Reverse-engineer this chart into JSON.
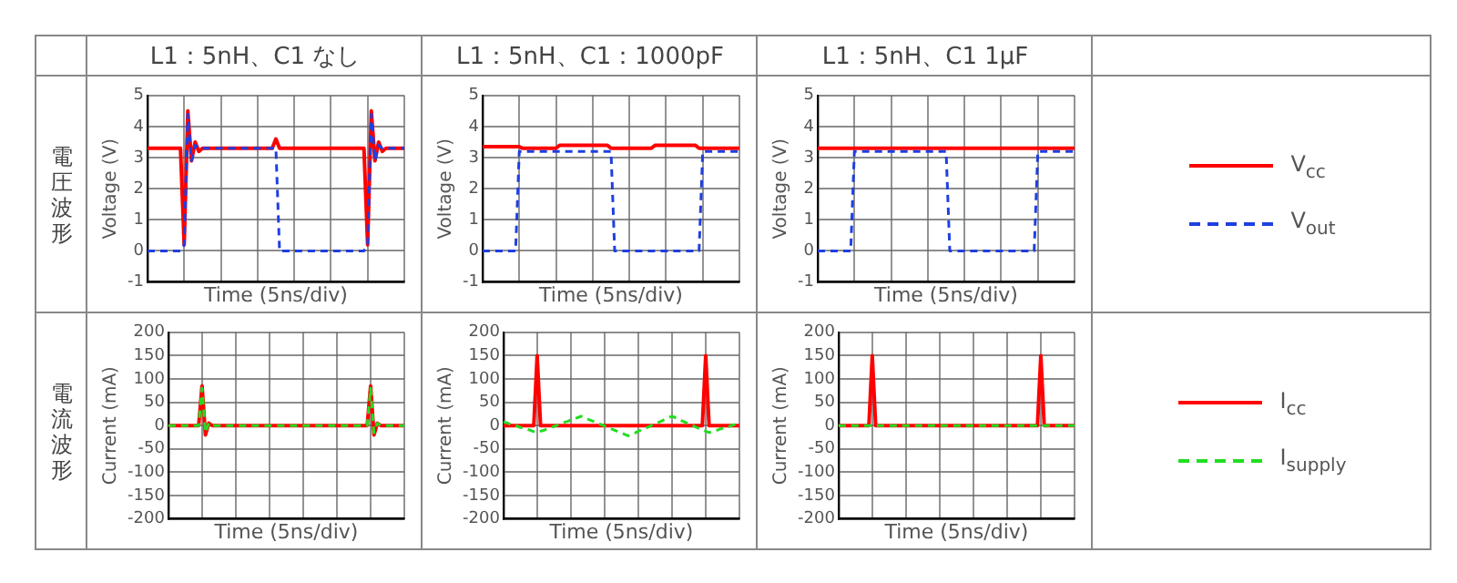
{
  "chart_data": [
    {
      "type": "line",
      "title": "L1：5nH、C1 なし",
      "subtitle": "電圧波形",
      "xlabel": "Time (5ns/div)",
      "ylabel": "Voltage (V)",
      "categories": [
        null,
        null,
        null,
        null,
        null,
        null,
        null,
        null,
        null,
        null,
        null,
        null,
        null,
        null,
        null,
        null,
        null,
        null,
        null,
        null,
        null,
        null,
        null,
        null,
        null,
        null,
        null,
        null,
        null,
        null,
        null,
        null,
        null,
        null,
        null,
        null,
        null,
        null,
        null,
        null,
        null,
        null,
        null,
        null,
        null,
        null,
        null,
        null,
        null,
        null,
        null,
        null,
        null,
        null,
        null,
        null,
        null,
        null,
        null,
        null,
        null,
        null,
        null,
        null,
        null,
        null,
        null,
        null,
        null,
        null,
        null
      ],
      "ylim": [
        -1,
        5
      ],
      "yticks": [
        -1,
        0,
        1,
        2,
        3,
        4,
        5
      ],
      "tick_labels": "y",
      "grid": true,
      "marker": "none",
      "series": [
        {
          "color": "#ff0000",
          "line_style": "solid",
          "values": [
            3.3,
            3.3,
            3.3,
            3.3,
            3.3,
            3.3,
            3.3,
            3.3,
            3.3,
            3.3,
            0.2,
            4.5,
            2.9,
            3.5,
            3.2,
            3.3,
            3.3,
            3.3,
            3.3,
            3.3,
            3.3,
            3.3,
            3.3,
            3.3,
            3.3,
            3.3,
            3.3,
            3.3,
            3.3,
            3.3,
            3.3,
            3.3,
            3.3,
            3.3,
            3.3,
            3.6,
            3.3,
            3.3,
            3.3,
            3.3,
            3.3,
            3.3,
            3.3,
            3.3,
            3.3,
            3.3,
            3.3,
            3.3,
            3.3,
            3.3,
            3.3,
            3.3,
            3.3,
            3.3,
            3.3,
            3.3,
            3.3,
            3.3,
            3.3,
            3.3,
            0.2,
            4.5,
            2.9,
            3.5,
            3.2,
            3.3,
            3.3,
            3.3,
            3.3,
            3.3,
            3.3
          ]
        },
        {
          "color": "#1f3fe0",
          "line_style": "dashed",
          "values": [
            0,
            0,
            0,
            0,
            0,
            0,
            0,
            0,
            0,
            0,
            0.2,
            4.4,
            2.9,
            3.4,
            3.3,
            3.3,
            3.3,
            3.3,
            3.3,
            3.3,
            3.3,
            3.3,
            3.3,
            3.3,
            3.3,
            3.3,
            3.3,
            3.3,
            3.3,
            3.3,
            3.3,
            3.3,
            3.3,
            3.3,
            3.3,
            3.3,
            0,
            0,
            0,
            0,
            0,
            0,
            0,
            0,
            0,
            0,
            0,
            0,
            0,
            0,
            0,
            0,
            0,
            0,
            0,
            0,
            0,
            0,
            0,
            0,
            0.2,
            4.4,
            2.9,
            3.4,
            3.3,
            3.3,
            3.3,
            3.3,
            3.3,
            3.3,
            3.3
          ]
        }
      ]
    },
    {
      "type": "line",
      "title": "L1：5nH、C1：1000pF",
      "xlabel": "Time (5ns/div)",
      "ylabel": "Voltage (V)",
      "categories": [
        null,
        null,
        null,
        null,
        null,
        null,
        null,
        null,
        null,
        null,
        null,
        null,
        null,
        null,
        null,
        null,
        null,
        null,
        null,
        null,
        null,
        null,
        null,
        null,
        null,
        null,
        null,
        null,
        null,
        null,
        null,
        null,
        null,
        null,
        null,
        null,
        null,
        null,
        null,
        null,
        null,
        null,
        null,
        null,
        null,
        null,
        null,
        null,
        null,
        null,
        null,
        null,
        null,
        null,
        null,
        null,
        null,
        null,
        null,
        null,
        null,
        null,
        null,
        null,
        null,
        null,
        null,
        null,
        null,
        null,
        null
      ],
      "ylim": [
        -1,
        5
      ],
      "yticks": [
        -1,
        0,
        1,
        2,
        3,
        4,
        5
      ],
      "tick_labels": "y",
      "grid": true,
      "marker": "none",
      "series": [
        {
          "color": "#ff0000",
          "line_style": "solid",
          "values": [
            3.35,
            3.35,
            3.35,
            3.35,
            3.35,
            3.35,
            3.35,
            3.35,
            3.35,
            3.35,
            3.35,
            3.3,
            3.3,
            3.3,
            3.3,
            3.3,
            3.3,
            3.3,
            3.3,
            3.3,
            3.3,
            3.4,
            3.4,
            3.4,
            3.4,
            3.4,
            3.4,
            3.4,
            3.4,
            3.4,
            3.4,
            3.4,
            3.4,
            3.4,
            3.4,
            3.3,
            3.3,
            3.3,
            3.3,
            3.3,
            3.3,
            3.3,
            3.3,
            3.3,
            3.3,
            3.3,
            3.3,
            3.4,
            3.4,
            3.4,
            3.4,
            3.4,
            3.4,
            3.4,
            3.4,
            3.4,
            3.4,
            3.4,
            3.4,
            3.3,
            3.3,
            3.3,
            3.3,
            3.3,
            3.3,
            3.3,
            3.3,
            3.3,
            3.3,
            3.3,
            3.3
          ]
        },
        {
          "color": "#1f3fe0",
          "line_style": "dashed",
          "values": [
            0,
            0,
            0,
            0,
            0,
            0,
            0,
            0,
            0,
            0,
            3.2,
            3.2,
            3.2,
            3.2,
            3.2,
            3.2,
            3.2,
            3.2,
            3.2,
            3.2,
            3.2,
            3.2,
            3.2,
            3.2,
            3.2,
            3.2,
            3.2,
            3.2,
            3.2,
            3.2,
            3.2,
            3.2,
            3.2,
            3.2,
            3.2,
            3.2,
            0,
            0,
            0,
            0,
            0,
            0,
            0,
            0,
            0,
            0,
            0,
            0,
            0,
            0,
            0,
            0,
            0,
            0,
            0,
            0,
            0,
            0,
            0,
            0,
            3.2,
            3.2,
            3.2,
            3.2,
            3.2,
            3.2,
            3.2,
            3.2,
            3.2,
            3.2,
            3.2
          ]
        }
      ]
    },
    {
      "type": "line",
      "title": "L1：5nH、C1 1μF",
      "xlabel": "Time (5ns/div)",
      "ylabel": "Voltage (V)",
      "categories": [
        null,
        null,
        null,
        null,
        null,
        null,
        null,
        null,
        null,
        null,
        null,
        null,
        null,
        null,
        null,
        null,
        null,
        null,
        null,
        null,
        null,
        null,
        null,
        null,
        null,
        null,
        null,
        null,
        null,
        null,
        null,
        null,
        null,
        null,
        null,
        null,
        null,
        null,
        null,
        null,
        null,
        null,
        null,
        null,
        null,
        null,
        null,
        null,
        null,
        null,
        null,
        null,
        null,
        null,
        null,
        null,
        null,
        null,
        null,
        null,
        null,
        null,
        null,
        null,
        null,
        null,
        null,
        null,
        null,
        null,
        null
      ],
      "ylim": [
        -1,
        5
      ],
      "yticks": [
        -1,
        0,
        1,
        2,
        3,
        4,
        5
      ],
      "tick_labels": "y",
      "grid": true,
      "marker": "none",
      "legend": "right",
      "series": [
        {
          "name": "V$_{cc}$",
          "color": "#ff0000",
          "line_style": "solid",
          "values": [
            3.3,
            3.3,
            3.3,
            3.3,
            3.3,
            3.3,
            3.3,
            3.3,
            3.3,
            3.3,
            3.3,
            3.3,
            3.3,
            3.3,
            3.3,
            3.3,
            3.3,
            3.3,
            3.3,
            3.3,
            3.3,
            3.3,
            3.3,
            3.3,
            3.3,
            3.3,
            3.3,
            3.3,
            3.3,
            3.3,
            3.3,
            3.3,
            3.3,
            3.3,
            3.3,
            3.3,
            3.3,
            3.3,
            3.3,
            3.3,
            3.3,
            3.3,
            3.3,
            3.3,
            3.3,
            3.3,
            3.3,
            3.3,
            3.3,
            3.3,
            3.3,
            3.3,
            3.3,
            3.3,
            3.3,
            3.3,
            3.3,
            3.3,
            3.3,
            3.3,
            3.3,
            3.3,
            3.3,
            3.3,
            3.3,
            3.3,
            3.3,
            3.3,
            3.3,
            3.3,
            3.3
          ]
        },
        {
          "name": "V$_{out}$",
          "color": "#1f3fe0",
          "line_style": "dashed",
          "values": [
            0,
            0,
            0,
            0,
            0,
            0,
            0,
            0,
            0,
            0,
            3.2,
            3.2,
            3.2,
            3.2,
            3.2,
            3.2,
            3.2,
            3.2,
            3.2,
            3.2,
            3.2,
            3.2,
            3.2,
            3.2,
            3.2,
            3.2,
            3.2,
            3.2,
            3.2,
            3.2,
            3.2,
            3.2,
            3.2,
            3.2,
            3.2,
            3.2,
            0,
            0,
            0,
            0,
            0,
            0,
            0,
            0,
            0,
            0,
            0,
            0,
            0,
            0,
            0,
            0,
            0,
            0,
            0,
            0,
            0,
            0,
            0,
            0,
            3.2,
            3.2,
            3.2,
            3.2,
            3.2,
            3.2,
            3.2,
            3.2,
            3.2,
            3.2,
            3.2
          ]
        }
      ]
    },
    {
      "type": "line",
      "subtitle": "電流波形",
      "xlabel": "Time (5ns/div)",
      "ylabel": "Current (mA)",
      "categories": [
        null,
        null,
        null,
        null,
        null,
        null,
        null,
        null,
        null,
        null,
        null,
        null,
        null,
        null,
        null,
        null,
        null,
        null,
        null,
        null,
        null,
        null,
        null,
        null,
        null,
        null,
        null,
        null,
        null,
        null,
        null,
        null,
        null,
        null,
        null,
        null,
        null,
        null,
        null,
        null,
        null,
        null,
        null,
        null,
        null,
        null,
        null,
        null,
        null,
        null,
        null,
        null,
        null,
        null,
        null,
        null,
        null,
        null,
        null,
        null,
        null,
        null,
        null,
        null,
        null,
        null,
        null,
        null,
        null,
        null,
        null
      ],
      "ylim": [
        -200,
        200
      ],
      "yticks": [
        -200,
        -150,
        -100,
        -50,
        0,
        50,
        100,
        150,
        200
      ],
      "tick_labels": "y",
      "grid": true,
      "marker": "none",
      "series": [
        {
          "color": "#ff0000",
          "line_style": "solid",
          "values": [
            0,
            0,
            0,
            0,
            0,
            0,
            0,
            0,
            0,
            0,
            85,
            -20,
            5,
            0,
            0,
            0,
            0,
            0,
            0,
            0,
            0,
            0,
            0,
            0,
            0,
            0,
            0,
            0,
            0,
            0,
            0,
            0,
            0,
            0,
            0,
            0,
            0,
            0,
            0,
            0,
            0,
            0,
            0,
            0,
            0,
            0,
            0,
            0,
            0,
            0,
            0,
            0,
            0,
            0,
            0,
            0,
            0,
            0,
            0,
            0,
            85,
            -20,
            5,
            0,
            0,
            0,
            0,
            0,
            0,
            0,
            0
          ]
        },
        {
          "color": "#22dd22",
          "line_style": "dashed",
          "values": [
            0,
            0,
            0,
            0,
            0,
            0,
            0,
            0,
            0,
            0,
            80,
            -15,
            5,
            0,
            0,
            0,
            0,
            0,
            0,
            0,
            0,
            0,
            0,
            0,
            0,
            0,
            0,
            0,
            0,
            0,
            0,
            0,
            0,
            0,
            0,
            0,
            0,
            0,
            0,
            0,
            0,
            0,
            0,
            0,
            0,
            0,
            0,
            0,
            0,
            0,
            0,
            0,
            0,
            0,
            0,
            0,
            0,
            0,
            0,
            0,
            80,
            -15,
            5,
            0,
            0,
            0,
            0,
            0,
            0,
            0,
            0
          ]
        }
      ]
    },
    {
      "type": "line",
      "xlabel": "Time (5ns/div)",
      "ylabel": "Current (mA)",
      "categories": [
        null,
        null,
        null,
        null,
        null,
        null,
        null,
        null,
        null,
        null,
        null,
        null,
        null,
        null,
        null,
        null,
        null,
        null,
        null,
        null,
        null,
        null,
        null,
        null,
        null,
        null,
        null,
        null,
        null,
        null,
        null,
        null,
        null,
        null,
        null,
        null,
        null,
        null,
        null,
        null,
        null,
        null,
        null,
        null,
        null,
        null,
        null,
        null,
        null,
        null,
        null,
        null,
        null,
        null,
        null,
        null,
        null,
        null,
        null,
        null,
        null,
        null,
        null,
        null,
        null,
        null,
        null,
        null,
        null,
        null,
        null
      ],
      "ylim": [
        -200,
        200
      ],
      "yticks": [
        -200,
        -150,
        -100,
        -50,
        0,
        50,
        100,
        150,
        200
      ],
      "tick_labels": "y",
      "grid": true,
      "marker": "none",
      "series": [
        {
          "color": "#ff0000",
          "line_style": "solid",
          "values": [
            0,
            0,
            0,
            0,
            0,
            0,
            0,
            0,
            0,
            0,
            150,
            0,
            0,
            0,
            0,
            0,
            0,
            0,
            0,
            0,
            0,
            0,
            0,
            0,
            0,
            0,
            0,
            0,
            0,
            0,
            0,
            0,
            0,
            0,
            0,
            0,
            0,
            0,
            0,
            0,
            0,
            0,
            0,
            0,
            0,
            0,
            0,
            0,
            0,
            0,
            0,
            0,
            0,
            0,
            0,
            0,
            0,
            0,
            0,
            0,
            150,
            0,
            0,
            0,
            0,
            0,
            0,
            0,
            0,
            0,
            0
          ]
        },
        {
          "color": "#22dd22",
          "line_style": "dashed",
          "values": [
            8,
            6,
            3,
            1,
            -1,
            -4,
            -6,
            -8,
            -10,
            -13,
            -15,
            -12,
            -10,
            -7,
            -4,
            -2,
            1,
            4,
            7,
            9,
            12,
            15,
            17,
            20,
            17,
            14,
            11,
            8,
            5,
            2,
            -1,
            -4,
            -7,
            -10,
            -13,
            -16,
            -19,
            -22,
            -19,
            -16,
            -12,
            -9,
            -6,
            -3,
            1,
            4,
            7,
            10,
            14,
            17,
            20,
            17,
            14,
            10,
            7,
            4,
            1,
            -3,
            -6,
            -9,
            -12,
            -15,
            -13,
            -11,
            -8,
            -6,
            -4,
            -2,
            1,
            3,
            5
          ]
        }
      ]
    },
    {
      "type": "line",
      "xlabel": "Time (5ns/div)",
      "ylabel": "Current (mA)",
      "categories": [
        null,
        null,
        null,
        null,
        null,
        null,
        null,
        null,
        null,
        null,
        null,
        null,
        null,
        null,
        null,
        null,
        null,
        null,
        null,
        null,
        null,
        null,
        null,
        null,
        null,
        null,
        null,
        null,
        null,
        null,
        null,
        null,
        null,
        null,
        null,
        null,
        null,
        null,
        null,
        null,
        null,
        null,
        null,
        null,
        null,
        null,
        null,
        null,
        null,
        null,
        null,
        null,
        null,
        null,
        null,
        null,
        null,
        null,
        null,
        null,
        null,
        null,
        null,
        null,
        null,
        null,
        null,
        null,
        null,
        null,
        null
      ],
      "ylim": [
        -200,
        200
      ],
      "yticks": [
        -200,
        -150,
        -100,
        -50,
        0,
        50,
        100,
        150,
        200
      ],
      "tick_labels": "y",
      "grid": true,
      "marker": "none",
      "legend": "right",
      "series": [
        {
          "name": "I$_{cc}$",
          "color": "#ff0000",
          "line_style": "solid",
          "values": [
            0,
            0,
            0,
            0,
            0,
            0,
            0,
            0,
            0,
            0,
            150,
            0,
            0,
            0,
            0,
            0,
            0,
            0,
            0,
            0,
            0,
            0,
            0,
            0,
            0,
            0,
            0,
            0,
            0,
            0,
            0,
            0,
            0,
            0,
            0,
            0,
            0,
            0,
            0,
            0,
            0,
            0,
            0,
            0,
            0,
            0,
            0,
            0,
            0,
            0,
            0,
            0,
            0,
            0,
            0,
            0,
            0,
            0,
            0,
            0,
            150,
            0,
            0,
            0,
            0,
            0,
            0,
            0,
            0,
            0,
            0
          ]
        },
        {
          "name": "I$_{supply}$",
          "color": "#22dd22",
          "line_style": "dashed",
          "values": [
            0,
            0,
            0,
            0,
            0,
            0,
            0,
            0,
            0,
            0,
            0,
            0,
            0,
            0,
            0,
            0,
            0,
            0,
            0,
            0,
            0,
            0,
            0,
            0,
            0,
            0,
            0,
            0,
            0,
            0,
            0,
            0,
            0,
            0,
            0,
            0,
            0,
            0,
            0,
            0,
            0,
            0,
            0,
            0,
            0,
            0,
            0,
            0,
            0,
            0,
            0,
            0,
            0,
            0,
            0,
            0,
            0,
            0,
            0,
            0,
            0,
            0,
            0,
            0,
            0,
            0,
            0,
            0,
            0,
            0,
            0
          ]
        }
      ]
    }
  ]
}
